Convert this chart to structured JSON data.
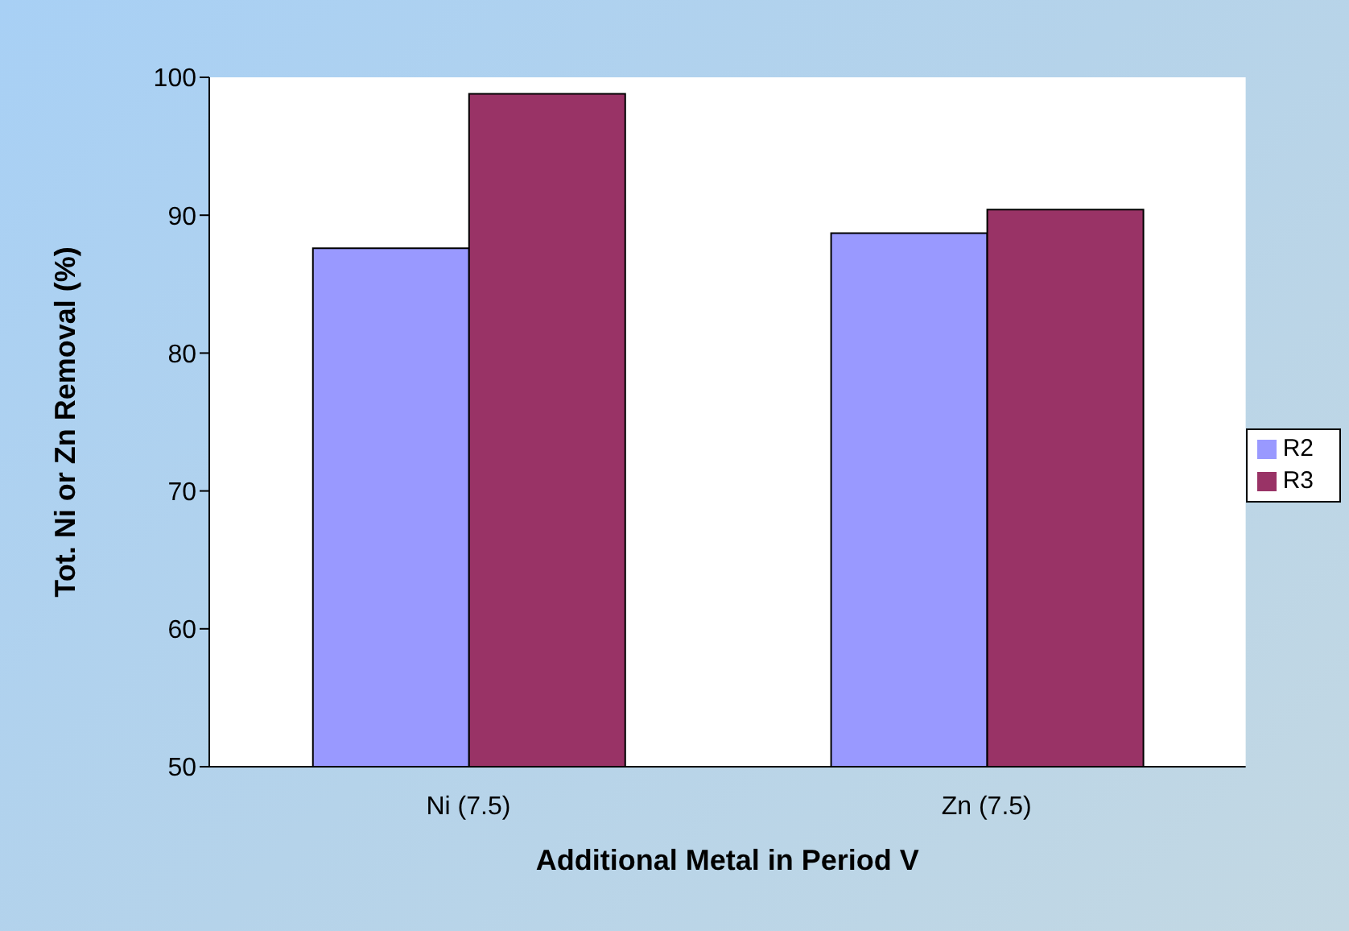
{
  "chart_data": {
    "type": "bar",
    "xlabel": "Additional Metal in Period V",
    "ylabel": "Tot. Ni or Zn Removal (%)",
    "categories": [
      "Ni (7.5)",
      "Zn (7.5)"
    ],
    "series": [
      {
        "name": "R2",
        "color": "#9999ff",
        "values": [
          87.6,
          88.7
        ]
      },
      {
        "name": "R3",
        "color": "#993366",
        "values": [
          98.8,
          90.4
        ]
      }
    ],
    "ylim": [
      50,
      100
    ],
    "yticks": [
      50,
      60,
      70,
      80,
      90,
      100
    ],
    "legend": "right"
  }
}
